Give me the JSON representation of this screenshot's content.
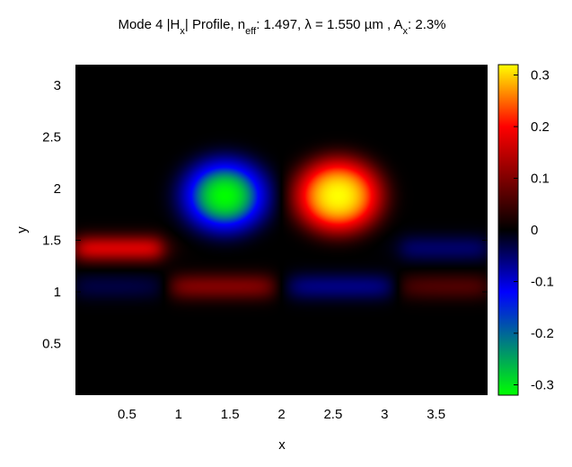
{
  "chart_data": {
    "type": "heatmap",
    "title": {
      "prefix": "Mode 4 |H",
      "field_sub": "x",
      "mid": "| Profile, n",
      "neff_sub": "eff",
      "neff": ": 1.497, λ = 1.550 µm , A",
      "ax_sub": "x",
      "ax": ": 2.3%"
    },
    "xlabel": "x",
    "ylabel": "y",
    "xlim": [
      0,
      4.0
    ],
    "ylim": [
      0,
      3.2
    ],
    "xticks": [
      "0.5",
      "1",
      "1.5",
      "2",
      "2.5",
      "3",
      "3.5"
    ],
    "xtick_values": [
      0.5,
      1,
      1.5,
      2,
      2.5,
      3,
      3.5
    ],
    "yticks": [
      "0.5",
      "1",
      "1.5",
      "2",
      "2.5",
      "3"
    ],
    "ytick_values": [
      0.5,
      1,
      1.5,
      2,
      2.5,
      3
    ],
    "colorbar": {
      "range": [
        -0.32,
        0.32
      ],
      "ticks": [
        "0.3",
        "0.2",
        "0.1",
        "0",
        "-0.1",
        "-0.2",
        "-0.3"
      ],
      "tick_values": [
        0.3,
        0.2,
        0.1,
        0,
        -0.1,
        -0.2,
        -0.3
      ],
      "colormap": [
        {
          "v": -0.32,
          "color": "#00ff00"
        },
        {
          "v": -0.2,
          "color": "#0000ff"
        },
        {
          "v": 0,
          "color": "#000000"
        },
        {
          "v": 0.2,
          "color": "#ff0000"
        },
        {
          "v": 0.32,
          "color": "#ffff00"
        }
      ]
    },
    "field_features": [
      {
        "kind": "lobe",
        "x": 1.45,
        "y": 1.93,
        "sx": 0.42,
        "sy": 0.36,
        "value": -0.32
      },
      {
        "kind": "lobe",
        "x": 2.55,
        "y": 1.93,
        "sx": 0.42,
        "sy": 0.36,
        "value": 0.32
      },
      {
        "kind": "band",
        "x": [
          0.0,
          0.85
        ],
        "y": 1.42,
        "value": 0.17
      },
      {
        "kind": "band",
        "x": [
          3.15,
          4.0
        ],
        "y": 1.42,
        "value": -0.08
      },
      {
        "kind": "band",
        "x": [
          0.0,
          0.9
        ],
        "y": 1.05,
        "value": -0.05
      },
      {
        "kind": "band",
        "x": [
          0.9,
          1.95
        ],
        "y": 1.05,
        "value": 0.1
      },
      {
        "kind": "band",
        "x": [
          2.05,
          3.1
        ],
        "y": 1.05,
        "value": -0.1
      },
      {
        "kind": "band",
        "x": [
          3.1,
          4.0
        ],
        "y": 1.05,
        "value": 0.06
      }
    ]
  }
}
